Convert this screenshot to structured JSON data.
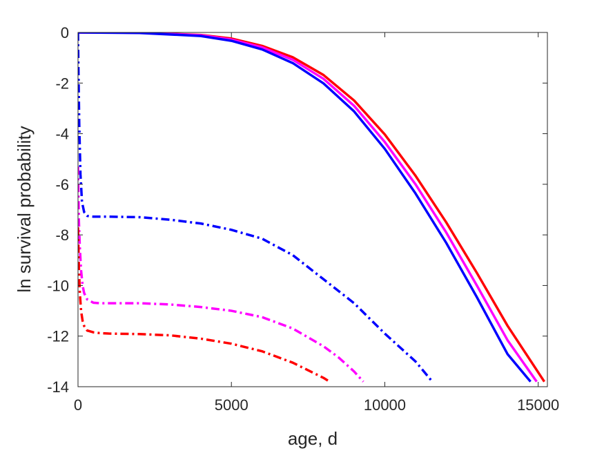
{
  "chart_data": {
    "type": "line",
    "xlabel": "age, d",
    "ylabel": "ln survival probability",
    "xlim": [
      0,
      15300
    ],
    "ylim": [
      -14,
      0
    ],
    "xticks": [
      0,
      5000,
      10000,
      15000
    ],
    "xtick_labels": [
      "0",
      "5000",
      "10000",
      "15000"
    ],
    "yticks": [
      0,
      -2,
      -4,
      -6,
      -8,
      -10,
      -12,
      -14
    ],
    "ytick_labels": [
      "0",
      "-2",
      "-4",
      "-6",
      "-8",
      "-10",
      "-12",
      "-14"
    ],
    "grid": false,
    "legend": false,
    "series": [
      {
        "color": "#ff0000",
        "style": "solid",
        "x": [
          0,
          2000,
          4000,
          5000,
          6000,
          7000,
          8000,
          9000,
          10000,
          11000,
          12000,
          13000,
          14000,
          15200
        ],
        "y": [
          0,
          -0.01,
          -0.1,
          -0.24,
          -0.53,
          -0.98,
          -1.68,
          -2.69,
          -4.03,
          -5.66,
          -7.5,
          -9.5,
          -11.59,
          -13.8
        ]
      },
      {
        "color": "#ff00ff",
        "style": "solid",
        "x": [
          0,
          2000,
          4000,
          5000,
          6000,
          7000,
          8000,
          9000,
          10000,
          11000,
          12000,
          13000,
          14000,
          14950
        ],
        "y": [
          0,
          -0.01,
          -0.11,
          -0.28,
          -0.59,
          -1.08,
          -1.83,
          -2.9,
          -4.33,
          -6.0,
          -7.9,
          -10.0,
          -12.16,
          -13.8
        ]
      },
      {
        "color": "#0000ff",
        "style": "solid",
        "x": [
          0,
          2000,
          4000,
          5000,
          6000,
          7000,
          8000,
          9000,
          10000,
          11000,
          12000,
          13000,
          14000,
          14750
        ],
        "y": [
          0,
          -0.02,
          -0.14,
          -0.33,
          -0.67,
          -1.21,
          -2.01,
          -3.12,
          -4.6,
          -6.36,
          -8.31,
          -10.46,
          -12.71,
          -13.8
        ]
      },
      {
        "color": "#0000ff",
        "style": "dashdot",
        "x": [
          0,
          15,
          40,
          80,
          130,
          200,
          300,
          500,
          1000,
          2000,
          3000,
          4000,
          5000,
          6000,
          7000,
          8000,
          9000,
          10000,
          11000,
          11550
        ],
        "y": [
          0,
          -1.5,
          -3.6,
          -5.6,
          -6.7,
          -7.1,
          -7.25,
          -7.28,
          -7.28,
          -7.3,
          -7.4,
          -7.55,
          -7.8,
          -8.15,
          -8.8,
          -9.75,
          -10.7,
          -11.9,
          -13.0,
          -13.8
        ]
      },
      {
        "color": "#ff00ff",
        "style": "dashdot",
        "x": [
          0,
          30,
          60,
          100,
          150,
          200,
          300,
          500,
          700,
          1000,
          2000,
          3000,
          4000,
          5000,
          6000,
          7000,
          8000,
          8500,
          9000,
          9300
        ],
        "y": [
          -5.3,
          -7.5,
          -8.5,
          -9.4,
          -10.0,
          -10.3,
          -10.55,
          -10.68,
          -10.7,
          -10.7,
          -10.7,
          -10.75,
          -10.85,
          -11.0,
          -11.25,
          -11.7,
          -12.4,
          -12.85,
          -13.4,
          -13.8
        ]
      },
      {
        "color": "#ff0000",
        "style": "dashdot",
        "x": [
          0,
          30,
          60,
          100,
          150,
          200,
          300,
          500,
          700,
          1000,
          2000,
          3000,
          4000,
          5000,
          6000,
          7000,
          7500,
          8000,
          8200
        ],
        "y": [
          -7.7,
          -9.3,
          -10.3,
          -11.0,
          -11.4,
          -11.6,
          -11.78,
          -11.85,
          -11.88,
          -11.9,
          -11.92,
          -11.97,
          -12.1,
          -12.3,
          -12.6,
          -13.05,
          -13.35,
          -13.65,
          -13.8
        ]
      }
    ]
  }
}
